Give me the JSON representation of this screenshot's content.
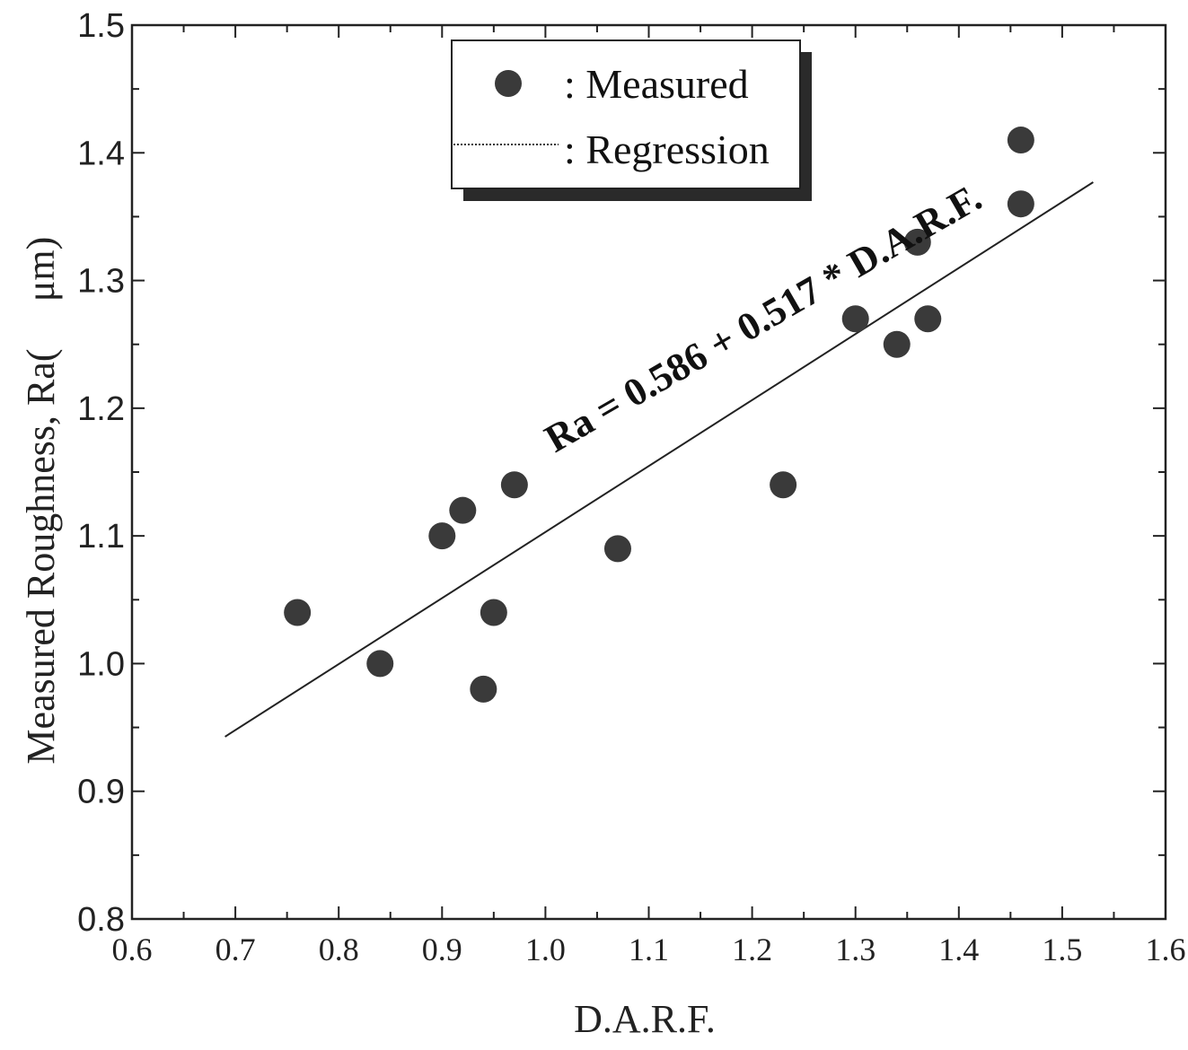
{
  "chart_data": {
    "type": "scatter",
    "xlabel": "D.A.R.F.",
    "ylabel_left": "Measured Roughness, Ra(",
    "ylabel_right": "μm)",
    "xlim": [
      0.6,
      1.6
    ],
    "ylim": [
      0.8,
      1.5
    ],
    "x_ticks": [
      "0.6",
      "0.7",
      "0.8",
      "0.9",
      "1.0",
      "1.1",
      "1.2",
      "1.3",
      "1.4",
      "1.5",
      "1.6"
    ],
    "y_ticks": [
      "0.8",
      "0.9",
      "1.0",
      "1.1",
      "1.2",
      "1.3",
      "1.4",
      "1.5"
    ],
    "legend": {
      "position": "top-center",
      "measured_label": ": Measured",
      "regression_label": ": Regression"
    },
    "series": [
      {
        "name": "Measured",
        "points": [
          {
            "x": 0.76,
            "y": 1.04
          },
          {
            "x": 0.84,
            "y": 1.0
          },
          {
            "x": 0.9,
            "y": 1.1
          },
          {
            "x": 0.92,
            "y": 1.12
          },
          {
            "x": 0.94,
            "y": 0.98
          },
          {
            "x": 0.95,
            "y": 1.04
          },
          {
            "x": 0.97,
            "y": 1.14
          },
          {
            "x": 1.07,
            "y": 1.09
          },
          {
            "x": 1.23,
            "y": 1.14
          },
          {
            "x": 1.3,
            "y": 1.27
          },
          {
            "x": 1.34,
            "y": 1.25
          },
          {
            "x": 1.36,
            "y": 1.33
          },
          {
            "x": 1.37,
            "y": 1.27
          },
          {
            "x": 1.46,
            "y": 1.36
          },
          {
            "x": 1.46,
            "y": 1.41
          }
        ]
      },
      {
        "name": "Regression",
        "intercept": 0.586,
        "slope": 0.517,
        "x_range": [
          0.69,
          1.53
        ]
      }
    ],
    "annotation": "Ra = 0.586 + 0.517 * D.A.R.F.",
    "colors": {
      "marker": "#3a3a3a",
      "line": "#222222",
      "axis": "#222222"
    }
  }
}
